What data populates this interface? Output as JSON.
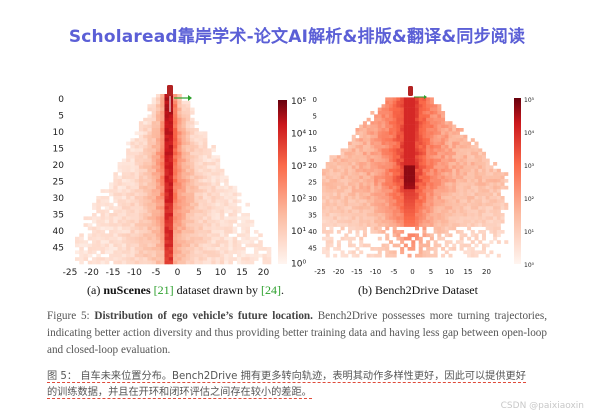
{
  "banner": {
    "text": "Scholaread靠岸学术-论文AI解析&排版&翻译&同步阅读"
  },
  "panels": [
    {
      "caption_prefix": "(a) ",
      "caption_bold": "nuScenes",
      "caption_ref1": "[21]",
      "caption_mid": " dataset drawn by ",
      "caption_ref2": "[24]",
      "caption_end": ".",
      "x_ticks": [
        "-25",
        "-20",
        "-15",
        "-10",
        "-5",
        "0",
        "5",
        "10",
        "15",
        "20"
      ],
      "y_ticks": [
        "0",
        "5",
        "10",
        "15",
        "20",
        "25",
        "30",
        "35",
        "40",
        "45"
      ],
      "colorbar_ticks": [
        "10⁵",
        "10⁴",
        "10³",
        "10²",
        "10¹",
        "10⁰"
      ]
    },
    {
      "caption": "(b) Bench2Drive Dataset",
      "x_ticks": [
        "-25",
        "-20",
        "-15",
        "-10",
        "-5",
        "0",
        "5",
        "10",
        "15",
        "20"
      ],
      "y_ticks": [
        "0",
        "5",
        "10",
        "15",
        "20",
        "25",
        "30",
        "35",
        "40",
        "45"
      ],
      "colorbar_ticks": [
        "10⁵",
        "10⁴",
        "10³",
        "10²",
        "10¹",
        "10⁰"
      ]
    }
  ],
  "figure_caption": {
    "label": "Figure 5:",
    "bold": "Distribution of ego vehicle’s future location.",
    "body": "Bench2Drive possesses more turning trajectories, indicating better action diversity and thus providing better training data and having less gap between open-loop and closed-loop evaluation."
  },
  "translation": {
    "line1": "图 5： 自车未来位置分布。Bench2Drive 拥有更多转向轨迹，表明其动作多样性更好，因此可以提供更好",
    "line2": "的训练数据，并且在开环和闭环评估之间存在较小的差距。"
  },
  "watermark": "CSDN @paixiaoxin",
  "colors": {
    "banner": "#5b5fd6",
    "heat_max": "#8b0000",
    "heat_min": "#fff5f0",
    "arrow": "#2ca02c",
    "underline": "#e04a3a"
  }
}
